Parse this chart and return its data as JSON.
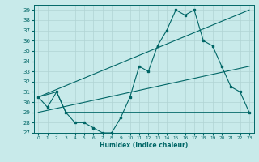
{
  "xlabel": "Humidex (Indice chaleur)",
  "ylabel": "",
  "bg_color": "#c8eaea",
  "grid_color": "#b0d4d4",
  "line_color": "#006666",
  "xlim": [
    -0.5,
    23.5
  ],
  "ylim": [
    27,
    39.5
  ],
  "yticks": [
    27,
    28,
    29,
    30,
    31,
    32,
    33,
    34,
    35,
    36,
    37,
    38,
    39
  ],
  "xticks": [
    0,
    1,
    2,
    3,
    4,
    5,
    6,
    7,
    8,
    9,
    10,
    11,
    12,
    13,
    14,
    15,
    16,
    17,
    18,
    19,
    20,
    21,
    22,
    23
  ],
  "line1_x": [
    0,
    1,
    2,
    3,
    4,
    5,
    6,
    7,
    8,
    9,
    10,
    11,
    12,
    13,
    14,
    15,
    16,
    17,
    18,
    19,
    20,
    21,
    22,
    23
  ],
  "line1_y": [
    30.5,
    29.5,
    31.0,
    29.0,
    28.0,
    28.0,
    27.5,
    27.0,
    27.0,
    28.5,
    30.5,
    33.5,
    33.0,
    35.5,
    37.0,
    39.0,
    38.5,
    39.0,
    36.0,
    35.5,
    33.5,
    31.5,
    31.0,
    29.0
  ],
  "line2_x": [
    0,
    2,
    3,
    23
  ],
  "line2_y": [
    30.5,
    31.0,
    29.0,
    29.0
  ],
  "line3_x": [
    0,
    23
  ],
  "line3_y": [
    30.5,
    39.0
  ],
  "line4_x": [
    0,
    23
  ],
  "line4_y": [
    29.0,
    33.5
  ]
}
